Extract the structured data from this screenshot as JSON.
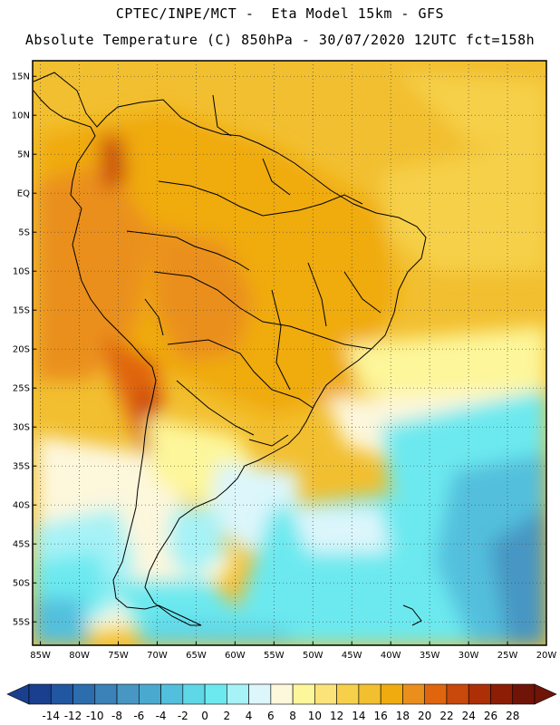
{
  "header": {
    "line1": "CPTEC/INPE/MCT -  Eta Model 15km - GFS",
    "line2": "Absolute Temperature (C) 850hPa - 30/07/2020 12UTC fct=158h"
  },
  "map": {
    "region": "South America",
    "projection": "lat-lon",
    "lon_range": [
      -86,
      -20
    ],
    "lat_range": [
      -58,
      17
    ],
    "lat_ticks": [
      "15N",
      "10N",
      "5N",
      "EQ",
      "5S",
      "10S",
      "15S",
      "20S",
      "25S",
      "30S",
      "35S",
      "40S",
      "45S",
      "50S",
      "55S"
    ],
    "lon_ticks": [
      "85W",
      "80W",
      "75W",
      "70W",
      "65W",
      "60W",
      "55W",
      "50W",
      "45W",
      "40W",
      "35W",
      "30W",
      "25W",
      "20W"
    ],
    "grid": "dotted",
    "field": "850hPa absolute temperature: 16-20 C over the tropics, 20-26 C over the Andes/Chaco, 6-10 C over the southern cone, 0-4 C in the southern Atlantic and off Patagonia"
  },
  "colorbar": {
    "labels": [
      "-14",
      "-12",
      "-10",
      "-8",
      "-6",
      "-4",
      "-2",
      "0",
      "2",
      "4",
      "6",
      "8",
      "10",
      "12",
      "14",
      "16",
      "18",
      "20",
      "22",
      "24",
      "26",
      "28"
    ],
    "colors": [
      "#1a3f8e",
      "#2156a1",
      "#2c6dae",
      "#3a82b8",
      "#4796c3",
      "#4aa9cf",
      "#52bfdd",
      "#5ed7e7",
      "#6ce9ef",
      "#a6f2f6",
      "#dcf6fb",
      "#fdf7dc",
      "#fdf69a",
      "#fbe37a",
      "#f6d04a",
      "#f2bf30",
      "#f0ab0f",
      "#ea8f1c",
      "#e0650f",
      "#c9480b",
      "#ad2f08",
      "#8d1d05",
      "#701408"
    ]
  }
}
